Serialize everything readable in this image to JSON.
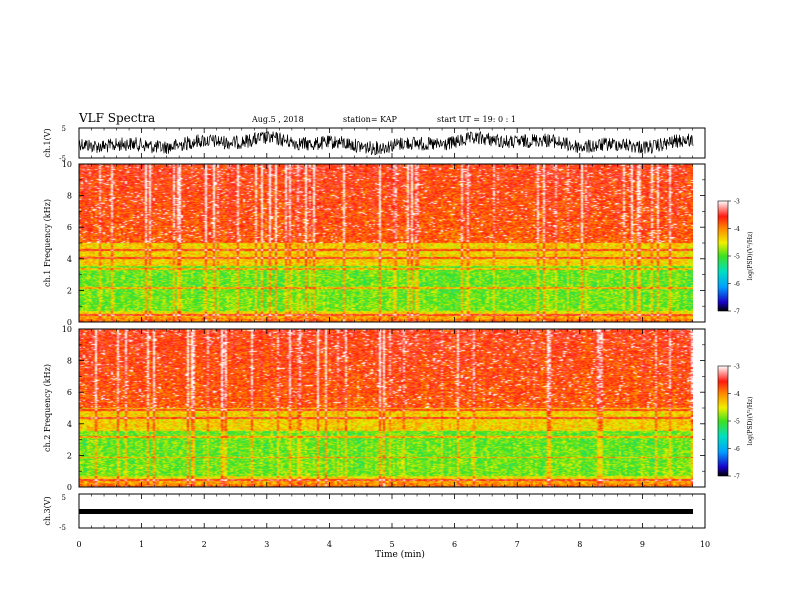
{
  "header": {
    "title": "VLF Spectra",
    "date": "Aug.5 , 2018",
    "station": "station= KAP",
    "start": "start UT = 19: 0 : 1"
  },
  "chart_data": [
    {
      "type": "line",
      "panel": "ch1-waveform",
      "ylabel": "ch.1(V)",
      "ylim": [
        -5,
        5
      ],
      "ytick_labels": [
        "-5",
        "5"
      ],
      "xlim": [
        0,
        10
      ],
      "line_color": "#000000",
      "data_extent_min": 9.85
    },
    {
      "type": "heatmap",
      "panel": "ch1-spectrogram",
      "ylabel": "ch.1 Frequency (kHz)",
      "ylim": [
        0,
        10
      ],
      "ytick_labels": [
        "0",
        "2",
        "4",
        "6",
        "8",
        "10"
      ],
      "xlim": [
        0,
        10
      ],
      "colorbar": {
        "label": "log(PSD)(V²/Hz)",
        "range": [
          -7,
          -3
        ],
        "tick_labels": [
          "-3",
          "-4",
          "-5",
          "-6",
          "-7"
        ]
      },
      "dominant_color_high_freq": "#ff2a1a",
      "dominant_color_low_freq": "#36e02e",
      "notes_band_lines_khz": [
        0.5,
        2.2,
        3.4,
        4.1,
        4.6
      ]
    },
    {
      "type": "heatmap",
      "panel": "ch2-spectrogram",
      "ylabel": "ch.2 Frequency (kHz)",
      "ylim": [
        0,
        10
      ],
      "ytick_labels": [
        "0",
        "2",
        "4",
        "6",
        "8",
        "10"
      ],
      "xlim": [
        0,
        10
      ],
      "colorbar": {
        "label": "log(PSD)(V²/Hz)",
        "range": [
          -7,
          -3
        ],
        "tick_labels": [
          "-3",
          "-4",
          "-5",
          "-6",
          "-7"
        ]
      },
      "dominant_color_high_freq": "#ff2a1a",
      "dominant_color_low_freq": "#36e02e",
      "notes_band_lines_khz": [
        0.5,
        1.9,
        3.2,
        4.4,
        4.9
      ]
    },
    {
      "type": "line",
      "panel": "ch3-waveform",
      "ylabel": "ch.3(V)",
      "ylim": [
        -5,
        5
      ],
      "ytick_labels": [
        "-5",
        "5"
      ],
      "xlim": [
        0,
        10
      ],
      "line_color": "#000000",
      "constant_value": 0
    }
  ],
  "xaxis": {
    "label": "Time (min)",
    "tick_labels": [
      "0",
      "1",
      "2",
      "3",
      "4",
      "5",
      "6",
      "7",
      "8",
      "9",
      "10"
    ]
  }
}
